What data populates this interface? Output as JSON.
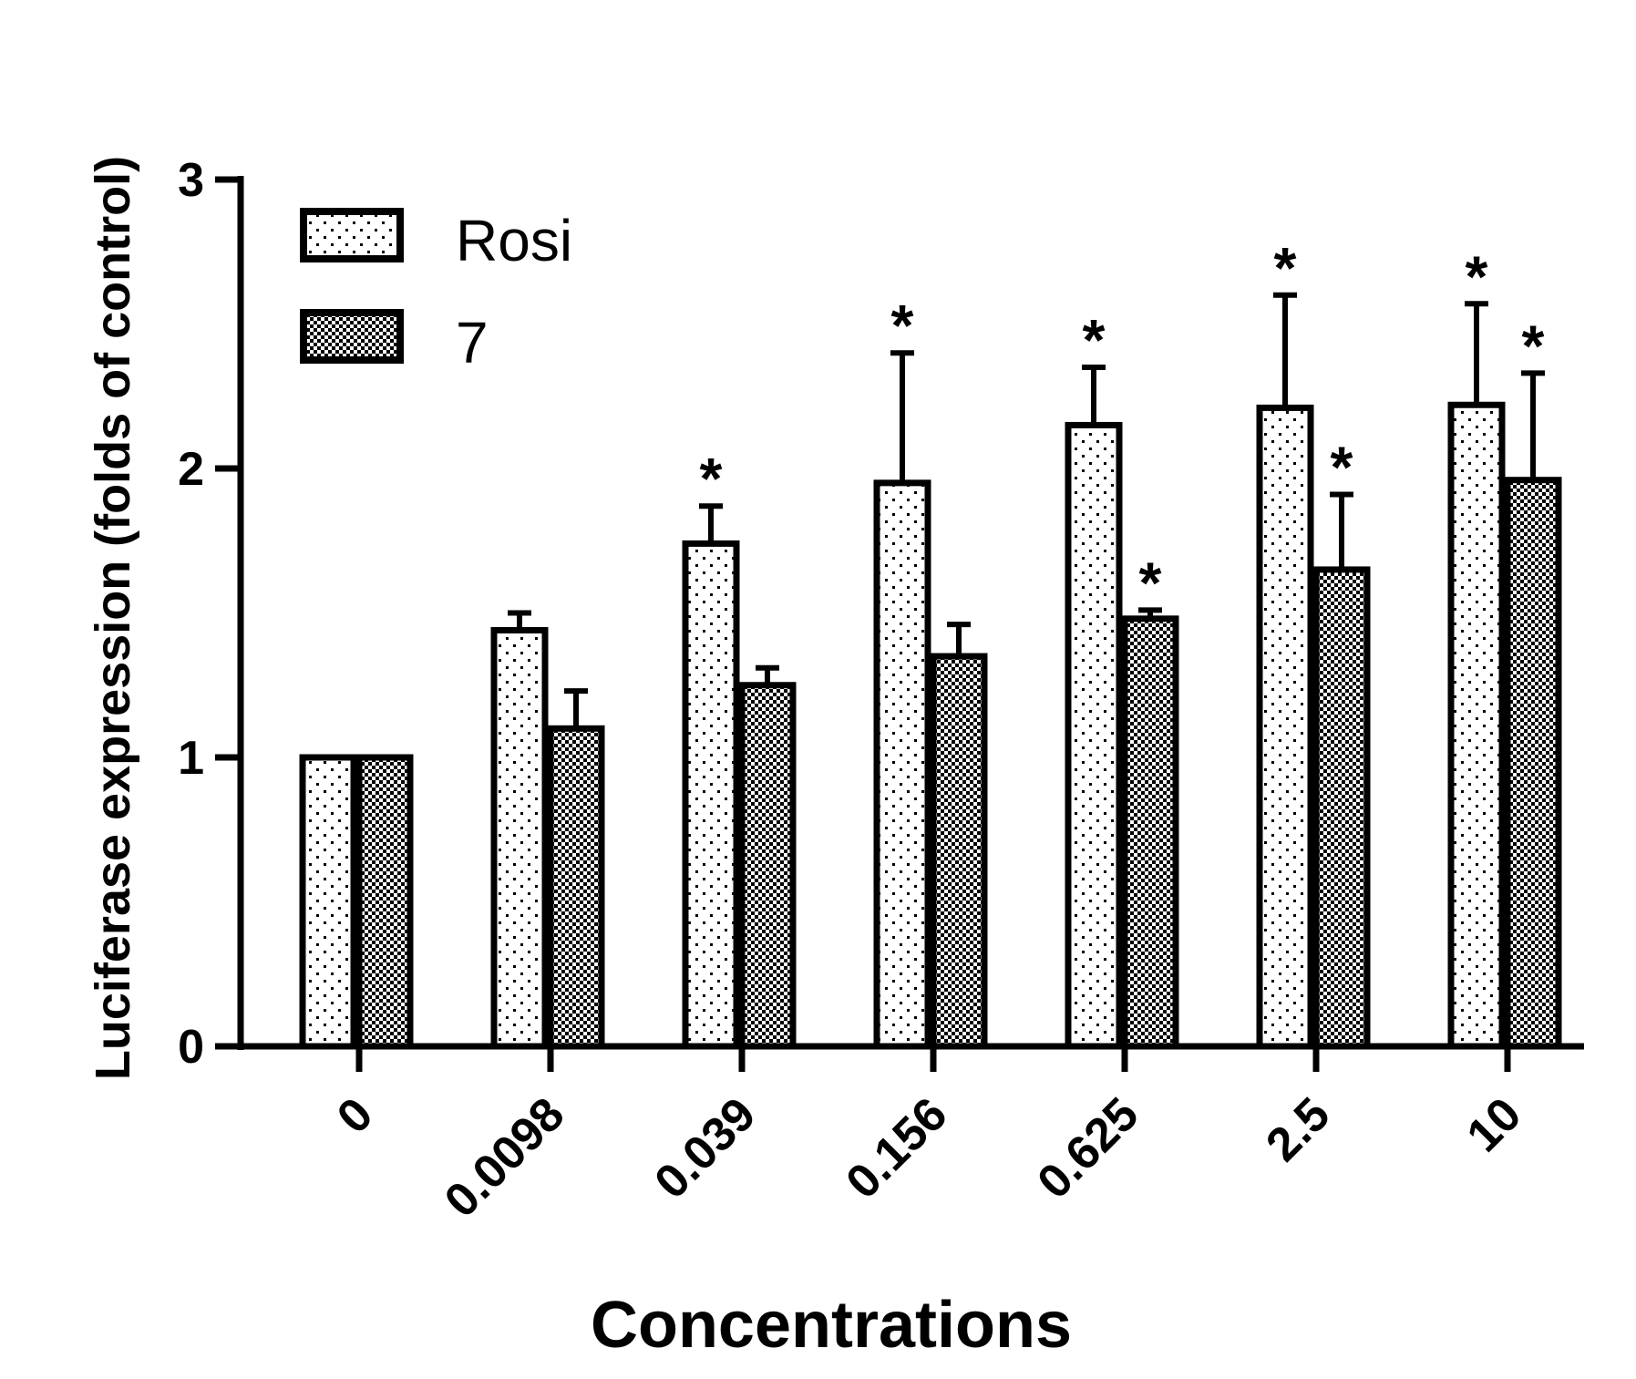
{
  "chart_data": {
    "type": "bar",
    "title": "",
    "xlabel": "Concentrations",
    "ylabel": "Luciferase expression (folds of control)",
    "ylim": [
      0,
      3
    ],
    "yticks": [
      "0",
      "1",
      "2",
      "3"
    ],
    "categories": [
      "0",
      "0.0098",
      "0.039",
      "0.156",
      "0.625",
      "2.5",
      "10"
    ],
    "significance_marker": "*",
    "legend_position": "top-left",
    "series": [
      {
        "name": "Rosi",
        "pattern": "dots",
        "values": [
          1.0,
          1.44,
          1.74,
          1.95,
          2.15,
          2.21,
          2.22
        ],
        "errors": [
          0.0,
          0.06,
          0.13,
          0.45,
          0.2,
          0.39,
          0.35
        ],
        "significant": [
          false,
          false,
          true,
          true,
          true,
          true,
          true
        ]
      },
      {
        "name": "7",
        "pattern": "checker",
        "values": [
          1.0,
          1.1,
          1.25,
          1.35,
          1.48,
          1.65,
          1.96
        ],
        "errors": [
          0.0,
          0.13,
          0.06,
          0.11,
          0.03,
          0.26,
          0.37
        ],
        "significant": [
          false,
          false,
          false,
          false,
          true,
          true,
          true
        ]
      }
    ],
    "colors": {
      "stroke": "#000000",
      "background": "#ffffff"
    }
  }
}
